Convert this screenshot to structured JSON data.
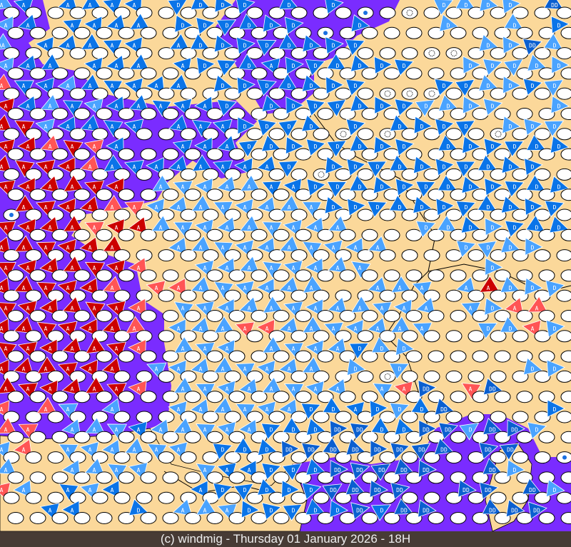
{
  "footer": {
    "caption": "(c) windmig - Thursday 01 January 2026 - 18H"
  },
  "colors": {
    "land": "#fbd89a",
    "sea": "#7a2cff",
    "border": "#000000",
    "marker": "#ffffff"
  },
  "legend_codes": {
    "r": {
      "label": "A",
      "color": "#cc0000"
    },
    "p": {
      "label": "A",
      "color": "#ff5555"
    },
    "b": {
      "label": "D",
      "color": "#0a74e8"
    },
    "B": {
      "label": "A",
      "color": "#0a74e8"
    },
    "l": {
      "label": "A",
      "color": "#4aa3ff"
    },
    "L": {
      "label": "D",
      "color": "#4aa3ff"
    },
    "d": {
      "label": "DD",
      "color": "#0a5fd0"
    },
    "q": {
      "label": "AA",
      "color": "#4aa3ff"
    },
    "s": {
      "icon": "storm-icon"
    },
    "w": {
      "icon": "rain-drop-icon"
    },
    ".": {
      "icon": "calm-marker"
    }
  },
  "grid_rows": [
    "lB.BBBB.bbbb.b.bw.s.LLLL.d",
    "lB.BBBB.bbbbbbw.b...L..L.b",
    "q.BBBBB.Bbbbbbbbb..ss.LLdL",
    "lBB.BBB.BbbbBbbbbbb..LLLLL",
    "pBBlBBBBB.bbbbbbbsssbbLLbL",
    "rBlBlBBBBBb.bbbbbbbLLLL..L",
    "rrlBBBB.BBBbbbbsbsbbbbsLLL",
    "rrprpB..BBBbbbbbbbb.bbbbbb",
    "rrrrpBBBBBBBBbsbbbbbbbbbb.",
    "rrrrrr.lllllBBbbbbbbbbbbbb",
    "wrrrrppllllllllbbbbbbbbbbb",
    "rrrrprrlllllllll...LLbLbbb",
    "rrrrrr..llllllllll...LLLL.",
    "rrrrrrp..llllllll.....L...",
    "rrrrrp.ppllllll..lll.lrLLL",
    "rrrrrrp.llllllllllll.lLpp.",
    "rrrrrrp.lllpplllllll..LLpL",
    "rrrrrrp.lll.llllbLL.......",
    "rrrrrr.llllllll.LsL.....LL",
    "rrrrrrp.llllllll.lpd.pd...",
    "p.pl.l..llllllbbBbLbd....b",
    "pp.lllBlllllbbbddbbddLddL.",
    "lp.llllll.bbbdddddddd.dd.w",
    "l..llll..lBBbbbddddd..dL..",
    "pl.BlB...Bbbbbbdddd..dd.dL",
    "..BB..b.lllbbbbbdbdd..ddd."
  ]
}
